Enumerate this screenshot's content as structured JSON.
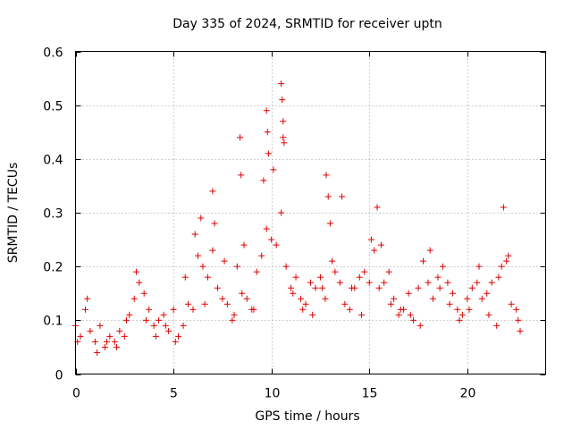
{
  "chart_data": {
    "type": "scatter",
    "title": "Day 335 of 2024, SRMTID for receiver uptn",
    "xlabel": "GPS time / hours",
    "ylabel": "SRMTID / TECUs",
    "xlim": [
      0,
      24
    ],
    "ylim": [
      0,
      0.6
    ],
    "x_ticks": [
      0,
      5,
      10,
      15,
      20
    ],
    "x_tick_labels": [
      "0",
      "5",
      "10",
      "15",
      "20"
    ],
    "y_ticks": [
      0,
      0.1,
      0.2,
      0.3,
      0.4,
      0.5,
      0.6
    ],
    "y_tick_labels": [
      "0",
      "0.1",
      "0.2",
      "0.3",
      "0.4",
      "0.5",
      "0.6"
    ],
    "grid": true,
    "marker": "plus",
    "color": "#e00000",
    "series": [
      {
        "name": "SRMTID",
        "x": [
          0.0,
          0.25,
          0.5,
          0.75,
          1.0,
          1.25,
          1.5,
          1.75,
          2.0,
          2.25,
          2.5,
          2.75,
          3.0,
          3.25,
          3.5,
          3.75,
          4.0,
          4.25,
          4.5,
          4.75,
          5.0,
          5.25,
          5.5,
          5.75,
          6.0,
          6.25,
          6.5,
          6.75,
          7.0,
          7.25,
          7.5,
          7.75,
          8.0,
          8.25,
          8.5,
          8.75,
          9.0,
          9.25,
          9.5,
          9.75,
          10.0,
          10.25,
          10.5,
          10.75,
          11.0,
          11.25,
          11.5,
          11.75,
          12.0,
          12.25,
          12.5,
          12.75,
          13.0,
          13.25,
          13.5,
          13.75,
          14.0,
          14.25,
          14.5,
          14.75,
          15.0,
          15.25,
          15.5,
          15.75,
          16.0,
          16.25,
          16.5,
          16.75,
          17.0,
          17.25,
          17.5,
          17.75,
          18.0,
          18.25,
          18.5,
          18.75,
          19.0,
          19.25,
          19.5,
          19.75,
          20.0,
          20.25,
          20.5,
          20.75,
          21.0,
          21.25,
          21.5,
          21.75,
          22.0,
          22.25,
          22.5,
          22.7,
          0.1,
          0.6,
          1.1,
          1.6,
          2.1,
          2.6,
          3.1,
          3.6,
          4.1,
          4.6,
          5.1,
          5.6,
          6.1,
          6.6,
          7.1,
          7.6,
          8.1,
          8.6,
          9.1,
          9.6,
          10.1,
          10.6,
          11.1,
          11.6,
          12.1,
          12.6,
          13.1,
          13.6,
          14.1,
          14.6,
          15.1,
          15.6,
          16.1,
          16.6,
          17.1,
          17.6,
          18.1,
          18.6,
          19.1,
          19.6,
          20.1,
          20.6,
          21.1,
          21.6,
          22.1,
          22.6,
          8.4,
          8.45,
          9.75,
          9.8,
          9.85,
          10.5,
          10.55,
          10.6,
          10.65,
          12.8,
          12.9,
          15.4,
          21.85,
          6.4,
          7.0
        ],
        "y": [
          0.09,
          0.07,
          0.12,
          0.08,
          0.06,
          0.09,
          0.05,
          0.07,
          0.06,
          0.08,
          0.07,
          0.11,
          0.14,
          0.17,
          0.15,
          0.12,
          0.09,
          0.1,
          0.11,
          0.08,
          0.12,
          0.07,
          0.09,
          0.13,
          0.12,
          0.22,
          0.2,
          0.18,
          0.23,
          0.16,
          0.14,
          0.13,
          0.1,
          0.2,
          0.15,
          0.14,
          0.12,
          0.19,
          0.22,
          0.27,
          0.25,
          0.24,
          0.3,
          0.2,
          0.16,
          0.18,
          0.14,
          0.13,
          0.17,
          0.16,
          0.18,
          0.14,
          0.28,
          0.19,
          0.17,
          0.13,
          0.12,
          0.16,
          0.18,
          0.19,
          0.17,
          0.23,
          0.16,
          0.17,
          0.19,
          0.14,
          0.11,
          0.12,
          0.15,
          0.1,
          0.16,
          0.21,
          0.17,
          0.14,
          0.18,
          0.2,
          0.17,
          0.15,
          0.12,
          0.11,
          0.14,
          0.16,
          0.17,
          0.14,
          0.15,
          0.17,
          0.09,
          0.2,
          0.21,
          0.13,
          0.12,
          0.08,
          0.06,
          0.14,
          0.04,
          0.06,
          0.05,
          0.1,
          0.19,
          0.1,
          0.07,
          0.09,
          0.06,
          0.18,
          0.26,
          0.13,
          0.28,
          0.21,
          0.11,
          0.24,
          0.12,
          0.36,
          0.38,
          0.44,
          0.15,
          0.12,
          0.11,
          0.16,
          0.21,
          0.33,
          0.16,
          0.11,
          0.25,
          0.24,
          0.13,
          0.12,
          0.11,
          0.09,
          0.23,
          0.16,
          0.13,
          0.1,
          0.12,
          0.2,
          0.11,
          0.18,
          0.22,
          0.1,
          0.44,
          0.37,
          0.49,
          0.45,
          0.41,
          0.54,
          0.51,
          0.47,
          0.43,
          0.37,
          0.33,
          0.31,
          0.31,
          0.29,
          0.34
        ]
      }
    ]
  }
}
